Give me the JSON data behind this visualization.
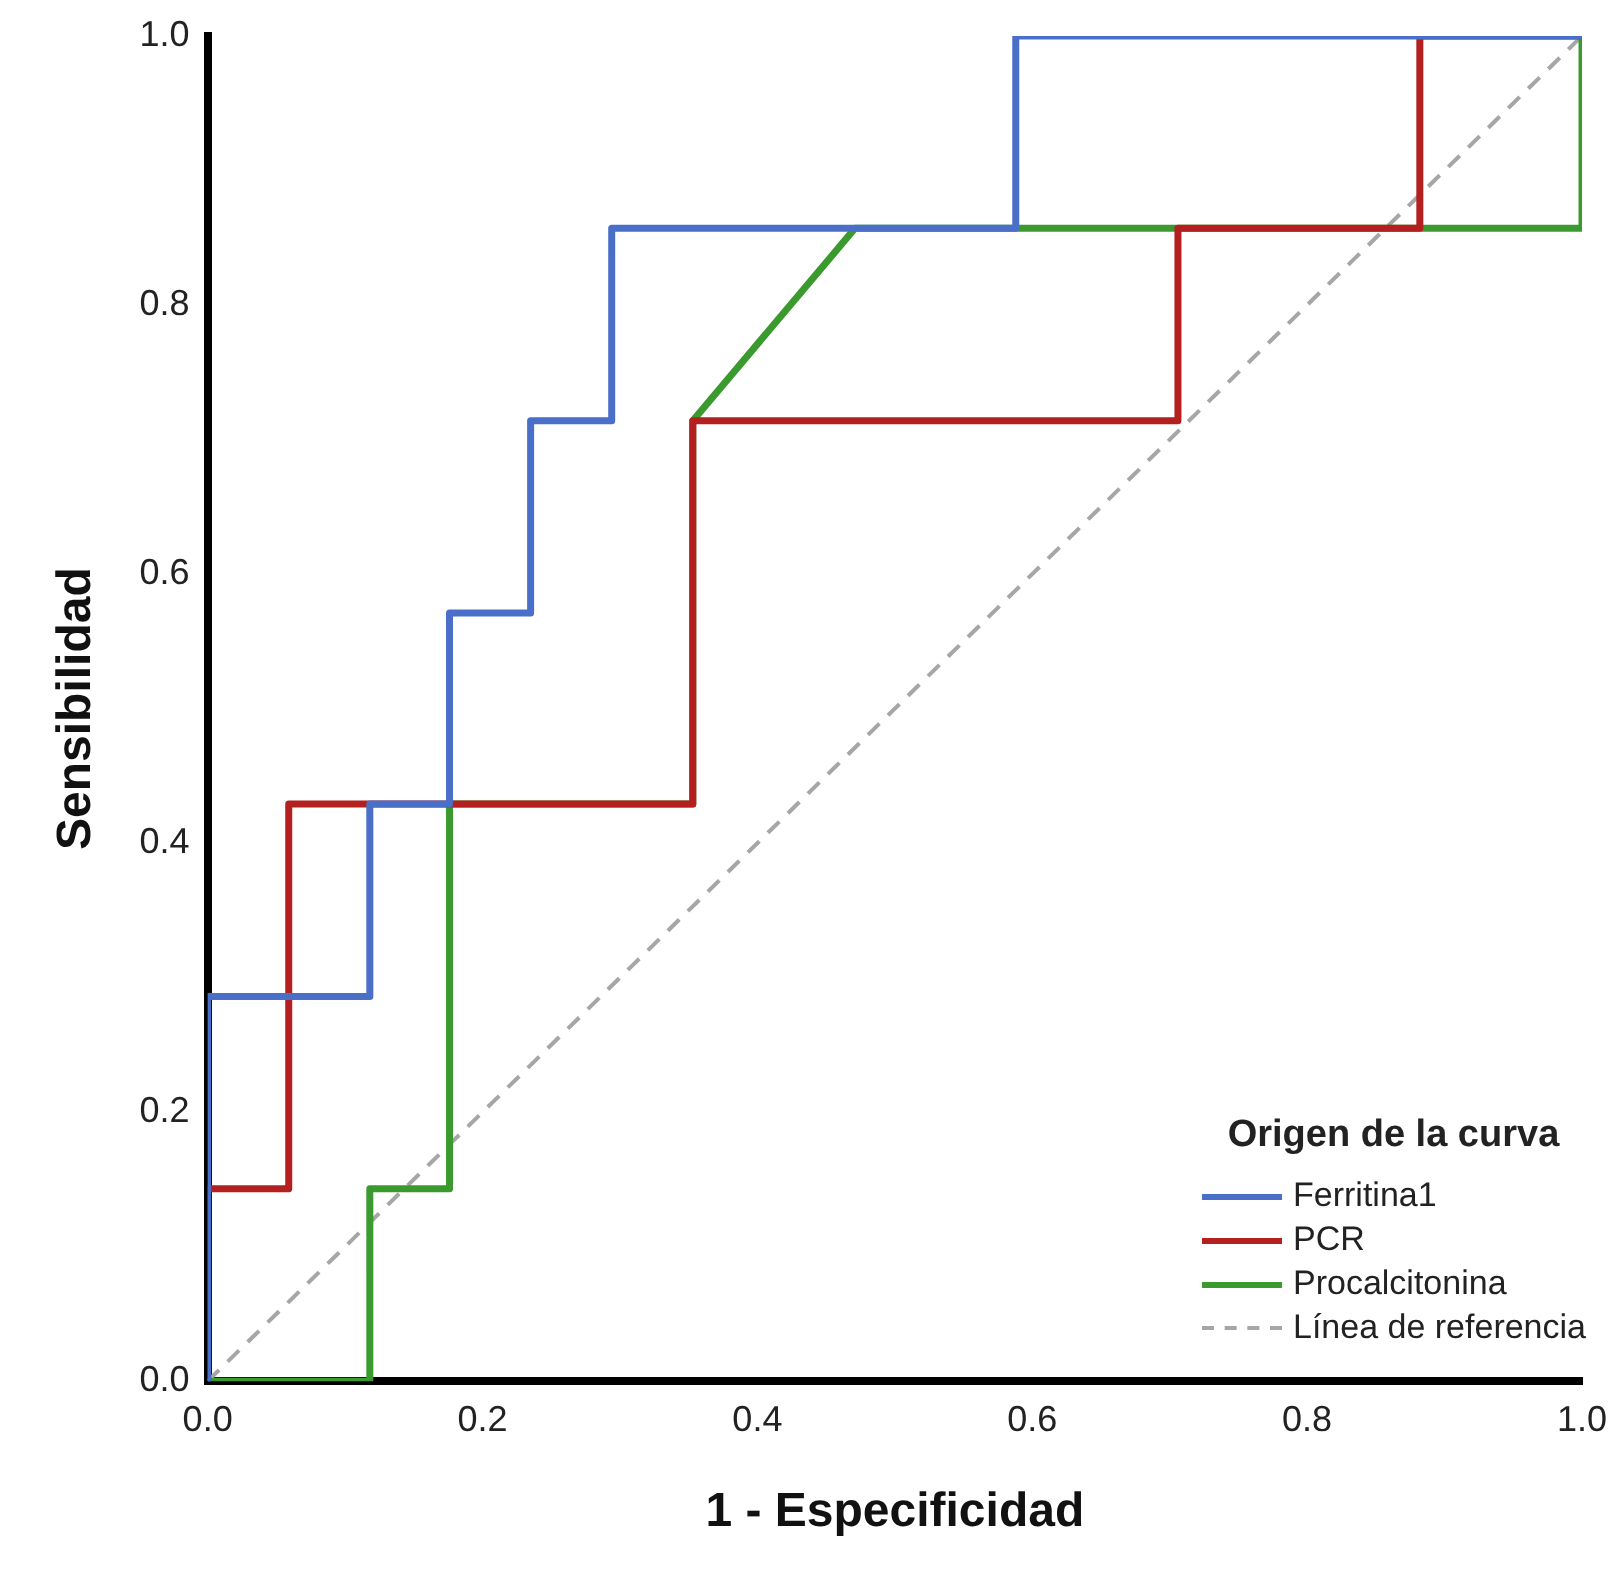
{
  "chart_data": {
    "type": "line",
    "xlabel": "1 - Especificidad",
    "ylabel": "Sensibilidad",
    "legend_title": "Origen de la curva",
    "legend": "bottom right",
    "grid": false,
    "marker": "none",
    "xlim": [
      0,
      1
    ],
    "ylim": [
      0,
      1
    ],
    "xticks": [
      {
        "value": 0,
        "label": "0.0"
      },
      {
        "value": 0.2,
        "label": "0.2"
      },
      {
        "value": 0.4,
        "label": "0.4"
      },
      {
        "value": 0.6,
        "label": "0.6"
      },
      {
        "value": 0.8,
        "label": "0.8"
      },
      {
        "value": 1,
        "label": "1.0"
      }
    ],
    "yticks": [
      {
        "value": 0,
        "label": "0.0"
      },
      {
        "value": 0.2,
        "label": "0.2"
      },
      {
        "value": 0.4,
        "label": "0.4"
      },
      {
        "value": 0.6,
        "label": "0.6"
      },
      {
        "value": 0.8,
        "label": "0.8"
      },
      {
        "value": 1,
        "label": "1.0"
      }
    ],
    "series": [
      {
        "name": "Ferritina1",
        "color": "#4a6fc9",
        "line_style": "solid",
        "x": [
          0,
          0,
          0.118,
          0.118,
          0.176,
          0.176,
          0.235,
          0.235,
          0.294,
          0.294,
          0.588,
          0.588,
          1
        ],
        "values": [
          0,
          0.286,
          0.286,
          0.429,
          0.429,
          0.571,
          0.571,
          0.714,
          0.714,
          0.857,
          0.857,
          1,
          1
        ]
      },
      {
        "name": "PCR",
        "color": "#b41f1f",
        "line_style": "solid",
        "x": [
          0,
          0,
          0.059,
          0.059,
          0.353,
          0.353,
          0.706,
          0.706,
          0.882,
          0.882,
          1
        ],
        "values": [
          0,
          0.143,
          0.143,
          0.429,
          0.429,
          0.714,
          0.714,
          0.857,
          0.857,
          1,
          1
        ]
      },
      {
        "name": "Procalcitonina",
        "color": "#3a9a2e",
        "line_style": "solid",
        "x": [
          0,
          0.118,
          0.118,
          0.176,
          0.176,
          0.353,
          0.353,
          0.471,
          1,
          1
        ],
        "values": [
          0,
          0,
          0.143,
          0.143,
          0.429,
          0.429,
          0.714,
          0.857,
          0.857,
          1
        ]
      },
      {
        "name": "Línea de referencia",
        "color": "#a6a6a6",
        "line_style": "dashed",
        "x": [
          0,
          1
        ],
        "values": [
          0,
          1
        ]
      }
    ]
  }
}
